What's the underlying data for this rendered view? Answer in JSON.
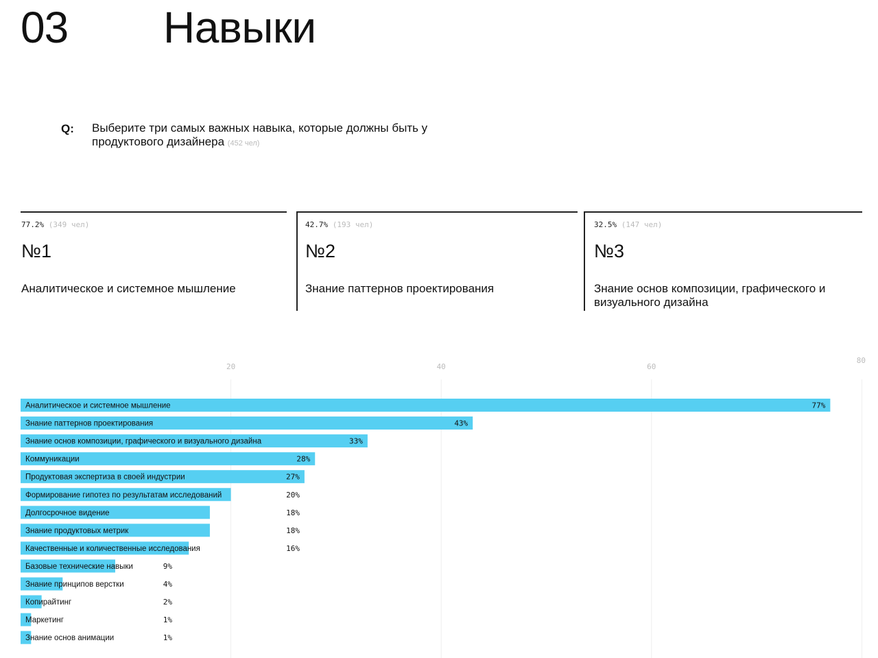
{
  "header": {
    "section_number": "03",
    "section_title": "Навыки"
  },
  "question": {
    "marker": "Q:",
    "text": "Выберите три самых важных навыка, которые должны быть у продуктового дизайнера",
    "note": "(452 чел)"
  },
  "top3": [
    {
      "percent": "77.2%",
      "count": "(349 чел)",
      "rank": "№1",
      "title": "Аналитическое и системное мышление"
    },
    {
      "percent": "42.7%",
      "count": "(193 чел)",
      "rank": "№2",
      "title": "Знание паттернов проектирования"
    },
    {
      "percent": "32.5%",
      "count": "(147 чел)",
      "rank": "№3",
      "title": "Знание основ композиции, графического и визуального дизайна"
    }
  ],
  "colors": {
    "bar": "#56cff2",
    "grid": "#eeeeee",
    "tick": "#bbbbbb",
    "text": "#111111"
  },
  "chart_data": {
    "type": "bar",
    "orientation": "horizontal",
    "xlim": [
      0,
      80
    ],
    "x_ticks": [
      20,
      40,
      60,
      80
    ],
    "grid": true,
    "categories": [
      "Аналитическое и системное мышление",
      "Знание паттернов проектирования",
      "Знание основ композиции, графического и визуального дизайна",
      "Коммуникации",
      "Продуктовая экспертиза в своей индустрии",
      "Формирование гипотез по результатам исследований",
      "Долгосрочное видение",
      "Знание продуктовых метрик",
      "Качественные и количественные исследования",
      "Базовые технические навыки",
      "Знание принципов верстки",
      "Копирайтинг",
      "Маркетинг",
      "Знание основ анимации"
    ],
    "values": [
      77,
      43,
      33,
      28,
      27,
      20,
      18,
      18,
      16,
      9,
      4,
      2,
      1,
      1
    ],
    "value_labels": [
      "77%",
      "43%",
      "33%",
      "28%",
      "27%",
      "20%",
      "18%",
      "18%",
      "16%",
      "9%",
      "4%",
      "2%",
      "1%",
      "1%"
    ]
  }
}
